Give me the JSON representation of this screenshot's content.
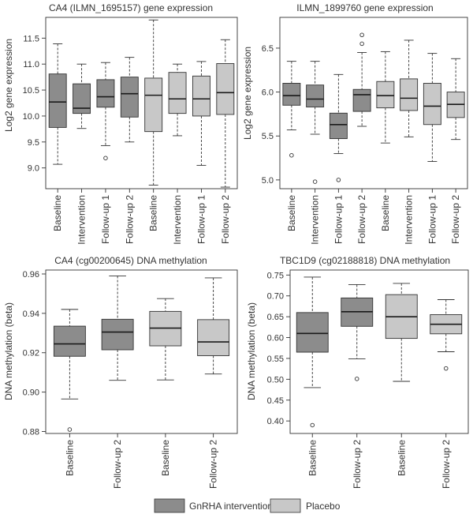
{
  "legend": {
    "items": [
      {
        "label": "GnRHA intervention",
        "color": "#8c8c8c"
      },
      {
        "label": "Placebo",
        "color": "#c8c8c8"
      }
    ]
  },
  "colors": {
    "gnrha": "#8c8c8c",
    "placebo": "#c8c8c8",
    "axis": "#333333"
  },
  "chart_data": [
    {
      "type": "box",
      "title": "CA4 (ILMN_1695157) gene expression",
      "ylabel": "Log2 gene expression",
      "ylim": [
        8.6,
        11.9
      ],
      "yticks": [
        "9.0",
        "9.5",
        "10.0",
        "10.5",
        "11.0",
        "11.5"
      ],
      "categories": [
        "Baseline",
        "Intervention",
        "Follow-up 1",
        "Follow-up 2",
        "Baseline",
        "Intervention",
        "Follow-up 1",
        "Follow-up 2"
      ],
      "groups": [
        "gnrha",
        "gnrha",
        "gnrha",
        "gnrha",
        "placebo",
        "placebo",
        "placebo",
        "placebo"
      ],
      "boxes": [
        {
          "min": 9.07,
          "q1": 9.78,
          "median": 10.27,
          "q3": 10.81,
          "max": 11.39,
          "outliers": []
        },
        {
          "min": 9.76,
          "q1": 10.05,
          "median": 10.15,
          "q3": 10.62,
          "max": 11.0,
          "outliers": []
        },
        {
          "min": 9.43,
          "q1": 10.17,
          "median": 10.37,
          "q3": 10.7,
          "max": 11.03,
          "outliers": [
            9.19
          ]
        },
        {
          "min": 9.5,
          "q1": 9.98,
          "median": 10.43,
          "q3": 10.75,
          "max": 11.13,
          "outliers": []
        },
        {
          "min": 8.67,
          "q1": 9.7,
          "median": 10.4,
          "q3": 10.73,
          "max": 11.85,
          "outliers": []
        },
        {
          "min": 9.62,
          "q1": 10.05,
          "median": 10.33,
          "q3": 10.84,
          "max": 11.0,
          "outliers": []
        },
        {
          "min": 9.05,
          "q1": 10.0,
          "median": 10.33,
          "q3": 10.77,
          "max": 11.05,
          "outliers": []
        },
        {
          "min": 8.63,
          "q1": 10.03,
          "median": 10.45,
          "q3": 11.01,
          "max": 11.47,
          "outliers": []
        }
      ]
    },
    {
      "type": "box",
      "title": "ILMN_1899760 gene expression",
      "ylabel": "Log2 gene expression",
      "ylim": [
        4.9,
        6.85
      ],
      "yticks": [
        "5.0",
        "5.5",
        "6.0",
        "6.5"
      ],
      "categories": [
        "Baseline",
        "Intervention",
        "Follow-up 1",
        "Follow-up 2",
        "Baseline",
        "Intervention",
        "Follow-up 1",
        "Follow-up 2"
      ],
      "groups": [
        "gnrha",
        "gnrha",
        "gnrha",
        "gnrha",
        "placebo",
        "placebo",
        "placebo",
        "placebo"
      ],
      "boxes": [
        {
          "min": 5.57,
          "q1": 5.85,
          "median": 5.96,
          "q3": 6.1,
          "max": 6.35,
          "outliers": [
            5.28
          ]
        },
        {
          "min": 5.52,
          "q1": 5.83,
          "median": 5.92,
          "q3": 6.08,
          "max": 6.35,
          "outliers": [
            4.98
          ]
        },
        {
          "min": 5.3,
          "q1": 5.47,
          "median": 5.63,
          "q3": 5.76,
          "max": 6.2,
          "outliers": [
            5.0
          ]
        },
        {
          "min": 5.61,
          "q1": 5.78,
          "median": 5.97,
          "q3": 6.03,
          "max": 6.45,
          "outliers": [
            6.65,
            6.55
          ]
        },
        {
          "min": 5.42,
          "q1": 5.82,
          "median": 5.96,
          "q3": 6.12,
          "max": 6.46,
          "outliers": []
        },
        {
          "min": 5.49,
          "q1": 5.79,
          "median": 5.93,
          "q3": 6.15,
          "max": 6.59,
          "outliers": []
        },
        {
          "min": 5.21,
          "q1": 5.63,
          "median": 5.84,
          "q3": 6.1,
          "max": 6.44,
          "outliers": []
        },
        {
          "min": 5.46,
          "q1": 5.71,
          "median": 5.86,
          "q3": 6.0,
          "max": 6.38,
          "outliers": []
        }
      ]
    },
    {
      "type": "box",
      "title": "CA4 (cg00200645) DNA methylation",
      "ylabel": "DNA methylation (beta)",
      "ylim": [
        0.879,
        0.962
      ],
      "yticks": [
        "0.88",
        "0.90",
        "0.92",
        "0.94",
        "0.96"
      ],
      "categories": [
        "Baseline",
        "Follow-up 2",
        "Baseline",
        "Follow-up 2"
      ],
      "groups": [
        "gnrha",
        "gnrha",
        "placebo",
        "placebo"
      ],
      "boxes": [
        {
          "min": 0.8965,
          "q1": 0.9182,
          "median": 0.9245,
          "q3": 0.9335,
          "max": 0.942,
          "outliers": [
            0.881
          ]
        },
        {
          "min": 0.906,
          "q1": 0.9215,
          "median": 0.9305,
          "q3": 0.937,
          "max": 0.959,
          "outliers": []
        },
        {
          "min": 0.9062,
          "q1": 0.9235,
          "median": 0.9325,
          "q3": 0.941,
          "max": 0.9475,
          "outliers": []
        },
        {
          "min": 0.9092,
          "q1": 0.9185,
          "median": 0.9255,
          "q3": 0.9368,
          "max": 0.958,
          "outliers": []
        }
      ]
    },
    {
      "type": "box",
      "title": "TBC1D9 (cg02188818) DNA methylation",
      "ylabel": "DNA methylation (beta)",
      "ylim": [
        0.37,
        0.762
      ],
      "yticks": [
        "0.40",
        "0.45",
        "0.50",
        "0.55",
        "0.60",
        "0.65",
        "0.70",
        "0.75"
      ],
      "categories": [
        "Baseline",
        "Follow-up 2",
        "Baseline",
        "Follow-up 2"
      ],
      "groups": [
        "gnrha",
        "gnrha",
        "placebo",
        "placebo"
      ],
      "boxes": [
        {
          "min": 0.48,
          "q1": 0.565,
          "median": 0.61,
          "q3": 0.66,
          "max": 0.745,
          "outliers": [
            0.39
          ]
        },
        {
          "min": 0.549,
          "q1": 0.627,
          "median": 0.662,
          "q3": 0.695,
          "max": 0.727,
          "outliers": [
            0.501
          ]
        },
        {
          "min": 0.495,
          "q1": 0.598,
          "median": 0.65,
          "q3": 0.703,
          "max": 0.73,
          "outliers": []
        },
        {
          "min": 0.566,
          "q1": 0.609,
          "median": 0.632,
          "q3": 0.655,
          "max": 0.691,
          "outliers": [
            0.526
          ]
        }
      ]
    }
  ]
}
